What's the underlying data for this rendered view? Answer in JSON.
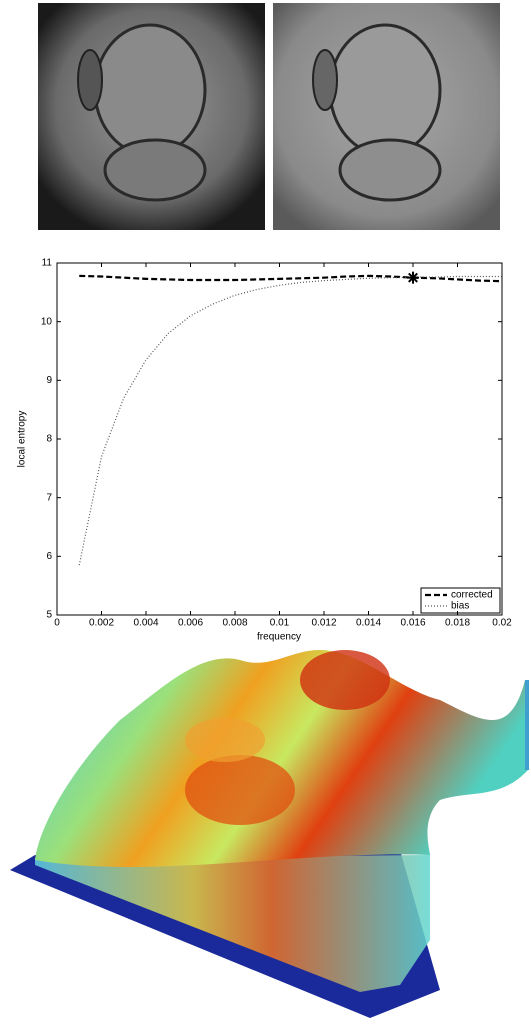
{
  "chart_data": {
    "type": "line",
    "xlabel": "frequency",
    "ylabel": "local entropy",
    "xlim": [
      0,
      0.02
    ],
    "xticks": [
      0,
      0.002,
      0.004,
      0.006,
      0.008,
      0.01,
      0.012,
      0.014,
      0.016,
      0.018,
      0.02
    ],
    "ylim": [
      5,
      11
    ],
    "yticks": [
      5,
      6,
      7,
      8,
      9,
      10,
      11
    ],
    "legend": "lower right",
    "x": [
      0.001,
      0.002,
      0.003,
      0.004,
      0.005,
      0.006,
      0.007,
      0.008,
      0.009,
      0.01,
      0.011,
      0.012,
      0.013,
      0.014,
      0.015,
      0.016,
      0.017,
      0.018,
      0.019,
      0.02
    ],
    "series": [
      {
        "name": "corrected",
        "color": "#000000",
        "style": "dashed",
        "values": [
          10.78,
          10.77,
          10.75,
          10.73,
          10.72,
          10.71,
          10.71,
          10.71,
          10.72,
          10.73,
          10.74,
          10.75,
          10.77,
          10.78,
          10.77,
          10.75,
          10.74,
          10.72,
          10.7,
          10.69
        ]
      },
      {
        "name": "bias",
        "color": "#555555",
        "style": "dotted",
        "values": [
          5.85,
          7.7,
          8.7,
          9.35,
          9.8,
          10.1,
          10.3,
          10.45,
          10.55,
          10.62,
          10.67,
          10.7,
          10.72,
          10.74,
          10.75,
          10.76,
          10.76,
          10.77,
          10.77,
          10.77
        ]
      }
    ],
    "highlight": {
      "x": 0.016,
      "y": 10.75
    }
  }
}
